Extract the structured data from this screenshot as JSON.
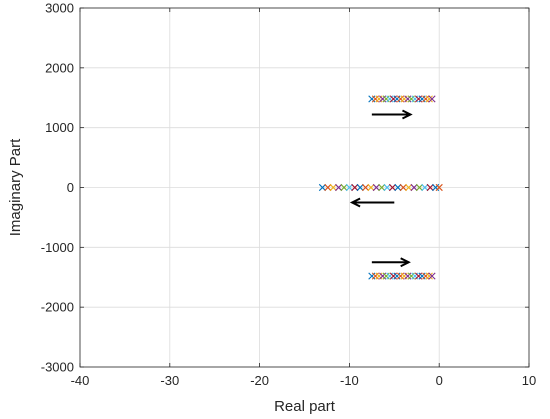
{
  "chart_data": {
    "type": "scatter",
    "title": "",
    "xlabel": "Real part",
    "ylabel": "Imaginary Part",
    "xlim": [
      -40,
      10
    ],
    "ylim": [
      -3000,
      3000
    ],
    "xticks": [
      -40,
      -30,
      -20,
      -10,
      0,
      10
    ],
    "yticks": [
      -3000,
      -2000,
      -1000,
      0,
      1000,
      2000,
      3000
    ],
    "xtick_labels": [
      "-40",
      "-30",
      "-20",
      "-10",
      "0",
      "10"
    ],
    "ytick_labels": [
      "-3000",
      "-2000",
      "-1000",
      "0",
      "1000",
      "2000",
      "3000"
    ],
    "grid": true,
    "marker": "x",
    "marker_colors": [
      "#0072BD",
      "#D95319",
      "#EDB120",
      "#7E2F8E",
      "#77AC30",
      "#4DBEEE",
      "#A2142F"
    ],
    "series": [
      {
        "x": [
          -7.5,
          -7.1,
          -6.7,
          -6.3,
          -5.9,
          -5.5,
          -5.1,
          -4.7,
          -4.3,
          -3.9,
          -3.5,
          -3.1,
          -2.7,
          -2.3,
          -1.9,
          -1.5,
          -1.1,
          -0.8
        ],
        "y": [
          1480,
          1480,
          1480,
          1480,
          1480,
          1480,
          1480,
          1480,
          1480,
          1480,
          1480,
          1480,
          1480,
          1480,
          1480,
          1480,
          1480,
          1480
        ]
      },
      {
        "x": [
          -13.0,
          -12.4,
          -11.8,
          -11.2,
          -10.6,
          -10.0,
          -9.4,
          -8.8,
          -8.2,
          -7.6,
          -7.0,
          -6.4,
          -5.8,
          -5.2,
          -4.6,
          -4.0,
          -3.4,
          -2.8,
          -2.2,
          -1.6,
          -1.0,
          -0.4,
          0.0
        ],
        "y": [
          0,
          0,
          0,
          0,
          0,
          0,
          0,
          0,
          0,
          0,
          0,
          0,
          0,
          0,
          0,
          0,
          0,
          0,
          0,
          0,
          0,
          0,
          0
        ]
      },
      {
        "x": [
          -7.5,
          -7.1,
          -6.7,
          -6.3,
          -5.9,
          -5.5,
          -5.1,
          -4.7,
          -4.3,
          -3.9,
          -3.5,
          -3.1,
          -2.7,
          -2.3,
          -1.9,
          -1.5,
          -1.1,
          -0.8
        ],
        "y": [
          -1480,
          -1480,
          -1480,
          -1480,
          -1480,
          -1480,
          -1480,
          -1480,
          -1480,
          -1480,
          -1480,
          -1480,
          -1480,
          -1480,
          -1480,
          -1480,
          -1480,
          -1480
        ]
      }
    ],
    "annotations": [
      {
        "type": "arrow",
        "x_from": -7.5,
        "y_from": 1220,
        "x_to": -3.2,
        "y_to": 1220
      },
      {
        "type": "arrow",
        "x_from": -5.0,
        "y_from": -250,
        "x_to": -9.7,
        "y_to": -250
      },
      {
        "type": "arrow",
        "x_from": -7.5,
        "y_from": -1250,
        "x_to": -3.4,
        "y_to": -1250
      }
    ]
  }
}
